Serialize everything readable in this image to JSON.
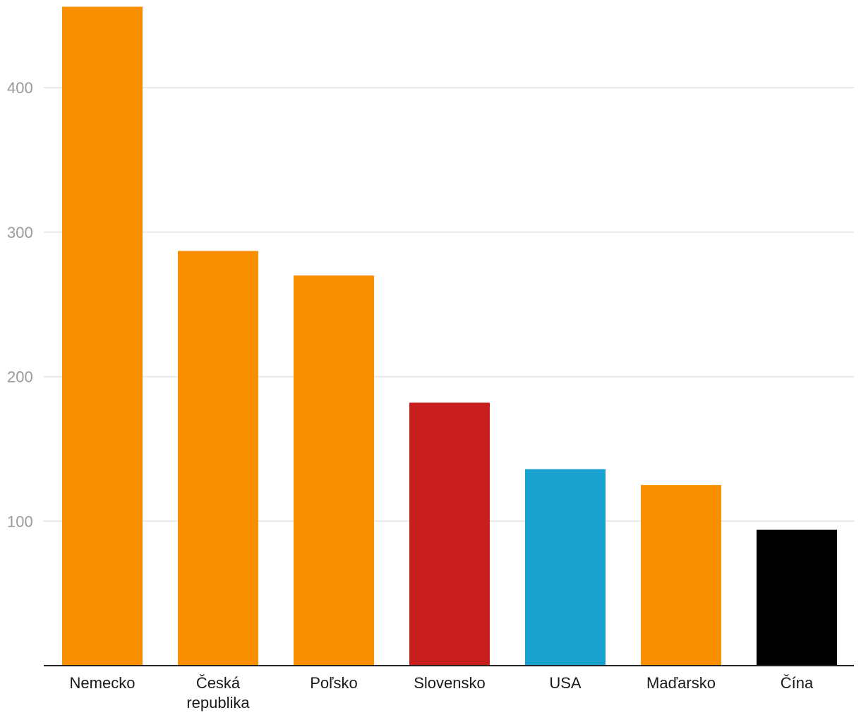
{
  "chart_data": {
    "type": "bar",
    "title": "",
    "xlabel": "",
    "ylabel": "",
    "categories": [
      [
        "Nemecko"
      ],
      [
        "Česká",
        "republika"
      ],
      [
        "Poľsko"
      ],
      [
        "Slovensko"
      ],
      [
        "USA"
      ],
      [
        "Maďarsko"
      ],
      [
        "Čína"
      ]
    ],
    "values": [
      456,
      287,
      270,
      182,
      136,
      125,
      94
    ],
    "colors": [
      "#f98e00",
      "#f98e00",
      "#f98e00",
      "#c91e1e",
      "#1aa1cf",
      "#f98e00",
      "#000000"
    ],
    "yticks": [
      100,
      200,
      300,
      400
    ],
    "ylim": [
      0,
      460
    ],
    "grid": true,
    "colors_meta": {
      "gridline": "#e3e3e3",
      "baseline": "#222222",
      "ytick_text": "#9a9a9a",
      "xtick_text": "#1a1a1a"
    }
  }
}
